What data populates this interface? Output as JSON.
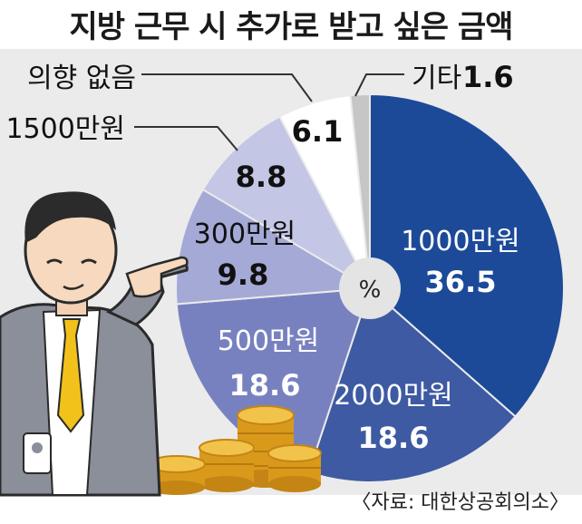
{
  "title": "지방 근무 시 추가로 받고 싶은 금액",
  "source": "〈자료: 대한상공회의소〉",
  "colors": {
    "background": "#ebebeb",
    "pie_dark": "#1d4a98",
    "pie_mid": "#3d5aa3",
    "pie_mid2": "#7881c0",
    "pie_light": "#a4a9d6",
    "pie_lighter": "#c3c6e4",
    "pie_white": "#ffffff",
    "pie_gray": "#c6c6c6",
    "text": "#1a1a1a"
  },
  "chart_data": {
    "type": "pie",
    "unit_label": "%",
    "slices": [
      {
        "label": "1000만원",
        "value": 36.5
      },
      {
        "label": "2000만원",
        "value": 18.6
      },
      {
        "label": "500만원",
        "value": 18.6
      },
      {
        "label": "300만원",
        "value": 9.8
      },
      {
        "label": "1500만원",
        "value": 8.8
      },
      {
        "label": "의향 없음",
        "value": 6.1
      },
      {
        "label": "기타",
        "value": 1.6
      }
    ]
  },
  "illustration": {
    "figure": "businessman-pointing",
    "coins": "gold-coin-stacks"
  }
}
